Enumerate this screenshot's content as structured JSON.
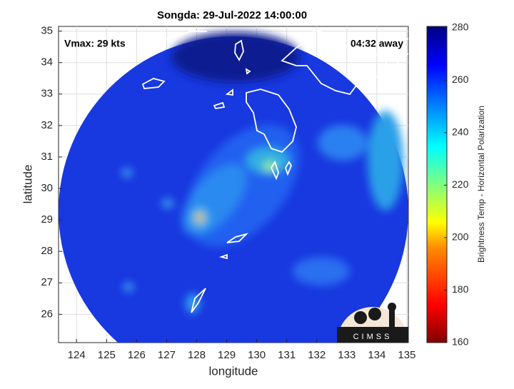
{
  "chart_data": {
    "type": "map",
    "title": "Songda: 29-Jul-2022 14:00:00",
    "annotations": [
      "Vmax: 29 kts",
      "04:32 away"
    ],
    "x_label": "longitude",
    "y_label": "latitude",
    "xlim": [
      123.4,
      135.05
    ],
    "xticks": [
      124,
      125,
      126,
      127,
      128,
      129,
      130,
      131,
      132,
      133,
      134,
      135
    ],
    "ylim": [
      25.1,
      35.15
    ],
    "yticks": [
      26,
      27,
      28,
      29,
      30,
      31,
      32,
      33,
      34,
      35
    ],
    "grid": true,
    "colorbar": {
      "label": "Brightness Temp - Horizontal Polarization",
      "clim": [
        160,
        280.5
      ],
      "ticks": [
        160,
        180,
        200,
        220,
        240,
        260,
        280
      ]
    },
    "logo": "CIMSS"
  }
}
